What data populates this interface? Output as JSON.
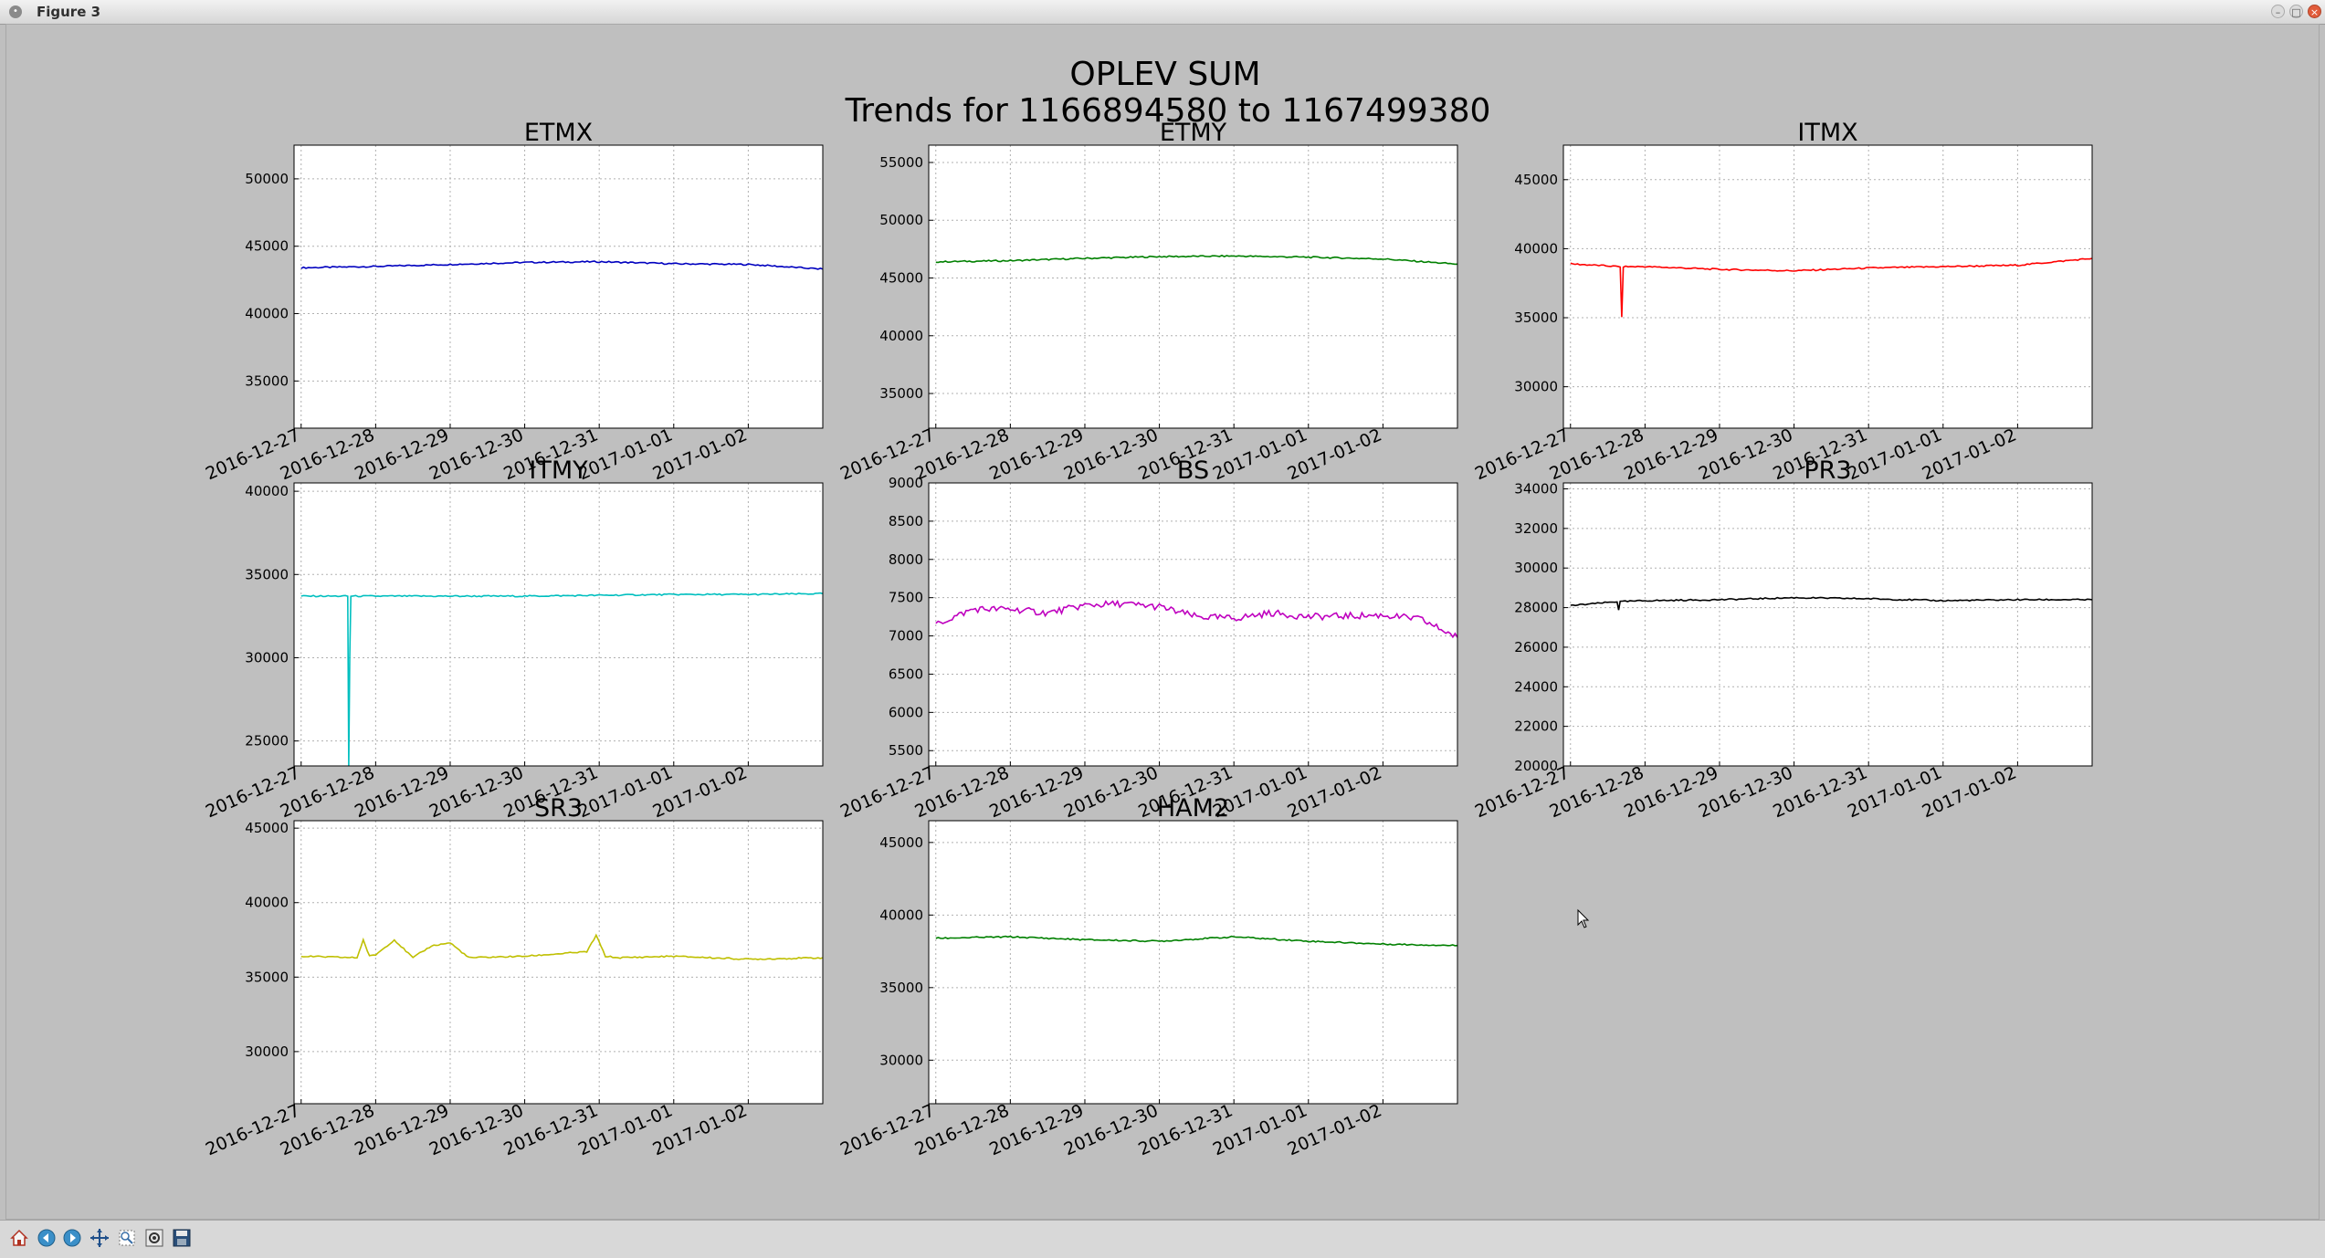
{
  "window": {
    "title": "Figure 3"
  },
  "figure": {
    "title_line1": "OPLEV SUM",
    "title_line2": "Trends for 1166894580 to 1167499380"
  },
  "toolbar": {
    "icons": [
      "home-icon",
      "back-icon",
      "forward-icon",
      "pan-icon",
      "zoom-icon",
      "configure-subplots-icon",
      "save-icon"
    ]
  },
  "chart_data": [
    {
      "type": "line",
      "title": "ETMX",
      "color": "#0000bf",
      "x": [
        "2016-12-27",
        "2016-12-28",
        "2016-12-29",
        "2016-12-30",
        "2016-12-31",
        "2017-01-01",
        "2017-01-02",
        "2017-01-03"
      ],
      "xticks": [
        "2016-12-27",
        "2016-12-28",
        "2016-12-29",
        "2016-12-30",
        "2016-12-31",
        "2017-01-01",
        "2017-01-02"
      ],
      "values": [
        43400,
        43500,
        43650,
        43800,
        43850,
        43700,
        43650,
        43300
      ],
      "ylim": [
        31500,
        52500
      ],
      "yticks": [
        "35000",
        "40000",
        "45000",
        "50000"
      ],
      "grid": true
    },
    {
      "type": "line",
      "title": "ETMY",
      "color": "#008000",
      "x": [
        "2016-12-27",
        "2016-12-28",
        "2016-12-29",
        "2016-12-30",
        "2016-12-31",
        "2017-01-01",
        "2017-01-02",
        "2017-01-03"
      ],
      "xticks": [
        "2016-12-27",
        "2016-12-28",
        "2016-12-29",
        "2016-12-30",
        "2016-12-31",
        "2017-01-01",
        "2017-01-02"
      ],
      "values": [
        46400,
        46500,
        46700,
        46850,
        46900,
        46800,
        46650,
        46200
      ],
      "ylim": [
        32000,
        56500
      ],
      "yticks": [
        "35000",
        "40000",
        "45000",
        "50000",
        "55000"
      ],
      "grid": true
    },
    {
      "type": "line",
      "title": "ITMX",
      "color": "#ff0000",
      "x": [
        "2016-12-27",
        "2016-12-27 16:00",
        "2016-12-27 16:30",
        "2016-12-27 17:00",
        "2016-12-28",
        "2016-12-29",
        "2016-12-30",
        "2016-12-31",
        "2017-01-01",
        "2017-01-02",
        "2017-01-03"
      ],
      "xticks": [
        "2016-12-27",
        "2016-12-28",
        "2016-12-29",
        "2016-12-30",
        "2016-12-31",
        "2017-01-01",
        "2017-01-02"
      ],
      "values": [
        38900,
        38700,
        35000,
        38700,
        38700,
        38500,
        38400,
        38600,
        38700,
        38800,
        39300
      ],
      "ylim": [
        27000,
        47500
      ],
      "yticks": [
        "30000",
        "35000",
        "40000",
        "45000"
      ],
      "grid": true
    },
    {
      "type": "line",
      "title": "ITMY",
      "color": "#00bfbf",
      "x": [
        "2016-12-27",
        "2016-12-27 15:00",
        "2016-12-27 15:20",
        "2016-12-27 15:40",
        "2016-12-27 16:00",
        "2016-12-28",
        "2016-12-29",
        "2016-12-30",
        "2016-12-31",
        "2017-01-01",
        "2017-01-02",
        "2017-01-03"
      ],
      "xticks": [
        "2016-12-27",
        "2016-12-28",
        "2016-12-29",
        "2016-12-30",
        "2016-12-31",
        "2017-01-01",
        "2017-01-02"
      ],
      "values": [
        33700,
        33700,
        23500,
        30000,
        33700,
        33700,
        33700,
        33700,
        33750,
        33800,
        33800,
        33850
      ],
      "ylim": [
        23500,
        40500
      ],
      "yticks": [
        "25000",
        "30000",
        "35000",
        "40000"
      ],
      "grid": true
    },
    {
      "type": "line",
      "title": "BS",
      "color": "#bf00bf",
      "x": [
        "2016-12-27",
        "2016-12-27 12:00",
        "2016-12-28",
        "2016-12-28 12:00",
        "2016-12-29",
        "2016-12-29 12:00",
        "2016-12-30",
        "2016-12-30 12:00",
        "2016-12-31",
        "2016-12-31 12:00",
        "2017-01-01",
        "2017-01-01 12:00",
        "2017-01-02",
        "2017-01-02 12:00",
        "2017-01-03"
      ],
      "xticks": [
        "2016-12-27",
        "2016-12-28",
        "2016-12-29",
        "2016-12-30",
        "2016-12-31",
        "2017-01-01",
        "2017-01-02"
      ],
      "values": [
        7150,
        7350,
        7350,
        7300,
        7400,
        7420,
        7380,
        7250,
        7230,
        7300,
        7250,
        7260,
        7270,
        7220,
        6980
      ],
      "ylim": [
        5300,
        9000
      ],
      "yticks": [
        "5500",
        "6000",
        "6500",
        "7000",
        "7500",
        "8000",
        "8500",
        "9000"
      ],
      "grid": true
    },
    {
      "type": "line",
      "title": "PR3",
      "color": "#000000",
      "x": [
        "2016-12-27",
        "2016-12-27 15:00",
        "2016-12-27 15:30",
        "2016-12-27 16:00",
        "2016-12-28",
        "2016-12-29",
        "2016-12-30",
        "2016-12-31",
        "2017-01-01",
        "2017-01-02",
        "2017-01-03"
      ],
      "xticks": [
        "2016-12-27",
        "2016-12-28",
        "2016-12-29",
        "2016-12-30",
        "2016-12-31",
        "2017-01-01",
        "2017-01-02"
      ],
      "values": [
        28100,
        28300,
        27900,
        28300,
        28350,
        28400,
        28500,
        28450,
        28350,
        28400,
        28400
      ],
      "ylim": [
        20000,
        34300
      ],
      "yticks": [
        "20000",
        "22000",
        "24000",
        "26000",
        "28000",
        "30000",
        "32000",
        "34000"
      ],
      "grid": true
    },
    {
      "type": "line",
      "title": "SR3",
      "color": "#bfbf00",
      "x": [
        "2016-12-27",
        "2016-12-27 18:00",
        "2016-12-27 20:00",
        "2016-12-27 22:00",
        "2016-12-28",
        "2016-12-28 06:00",
        "2016-12-28 12:00",
        "2016-12-28 18:00",
        "2016-12-29",
        "2016-12-29 06:00",
        "2016-12-30",
        "2016-12-30 20:00",
        "2016-12-30 23:00",
        "2016-12-31 02:00",
        "2016-12-31 06:00",
        "2017-01-01",
        "2017-01-02",
        "2017-01-03"
      ],
      "xticks": [
        "2016-12-27",
        "2016-12-28",
        "2016-12-29",
        "2016-12-30",
        "2016-12-31",
        "2017-01-01",
        "2017-01-02"
      ],
      "values": [
        36400,
        36300,
        37500,
        36400,
        36500,
        37500,
        36300,
        37100,
        37300,
        36300,
        36400,
        36700,
        37800,
        36400,
        36300,
        36400,
        36200,
        36300
      ],
      "ylim": [
        26500,
        45500
      ],
      "yticks": [
        "30000",
        "35000",
        "40000",
        "45000"
      ],
      "grid": true
    },
    {
      "type": "line",
      "title": "HAM2",
      "color": "#008000",
      "x": [
        "2016-12-27",
        "2016-12-28",
        "2016-12-29",
        "2016-12-30",
        "2016-12-31",
        "2017-01-01",
        "2017-01-02",
        "2017-01-03"
      ],
      "xticks": [
        "2016-12-27",
        "2016-12-28",
        "2016-12-29",
        "2016-12-30",
        "2016-12-31",
        "2017-01-01",
        "2017-01-02"
      ],
      "values": [
        38400,
        38500,
        38300,
        38200,
        38500,
        38200,
        38000,
        37900
      ],
      "ylim": [
        27000,
        46500
      ],
      "yticks": [
        "30000",
        "35000",
        "40000",
        "45000"
      ],
      "grid": true
    }
  ]
}
